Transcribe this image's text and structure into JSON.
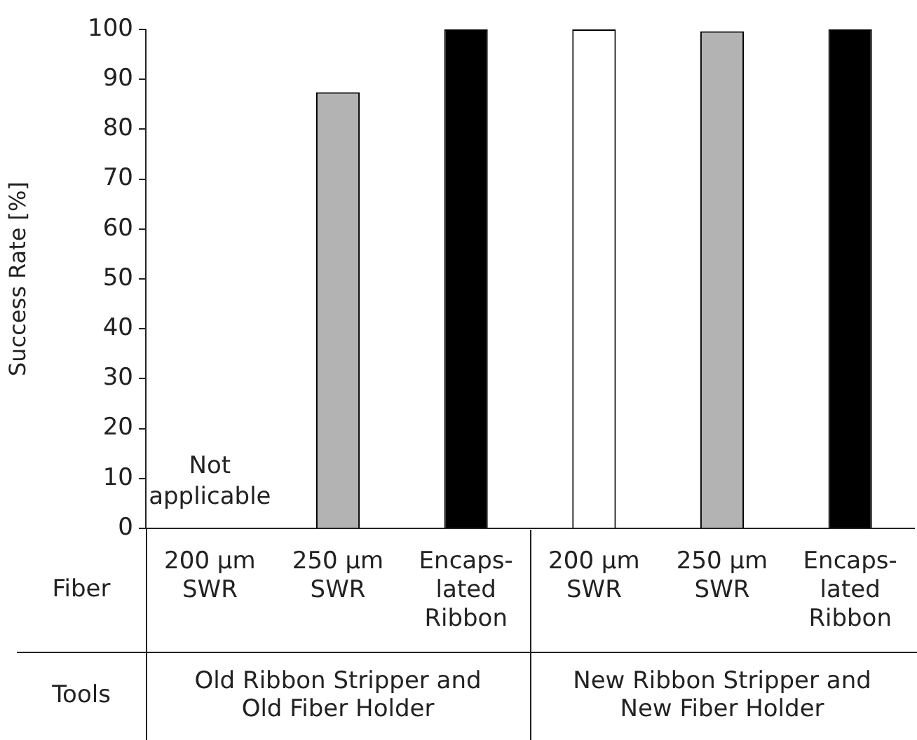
{
  "chart_data": {
    "type": "bar",
    "ylabel": "Success Rate [%]",
    "xlabel": "Fiber",
    "categories": [
      "200 µm SWR",
      "250 µm SWR",
      "Encaps-lated Ribbon",
      "200 µm SWR",
      "250 µm SWR",
      "Encaps-lated Ribbon"
    ],
    "values": [
      null,
      87.4,
      100,
      100,
      99.6,
      100
    ],
    "colors": [
      "#b3b3b3",
      "#b3b3b3",
      "#000000",
      "#ffffff",
      "#b3b3b3",
      "#000000"
    ],
    "ylim": [
      0,
      100
    ],
    "yticks": [
      0,
      10,
      20,
      30,
      40,
      50,
      60,
      70,
      80,
      90,
      100
    ],
    "annotations": [
      "Not applicable",
      "Tools",
      "Old Ribbon Stripper and Old Fiber Holder",
      "New Ribbon Stripper and New Fiber Holder"
    ]
  }
}
